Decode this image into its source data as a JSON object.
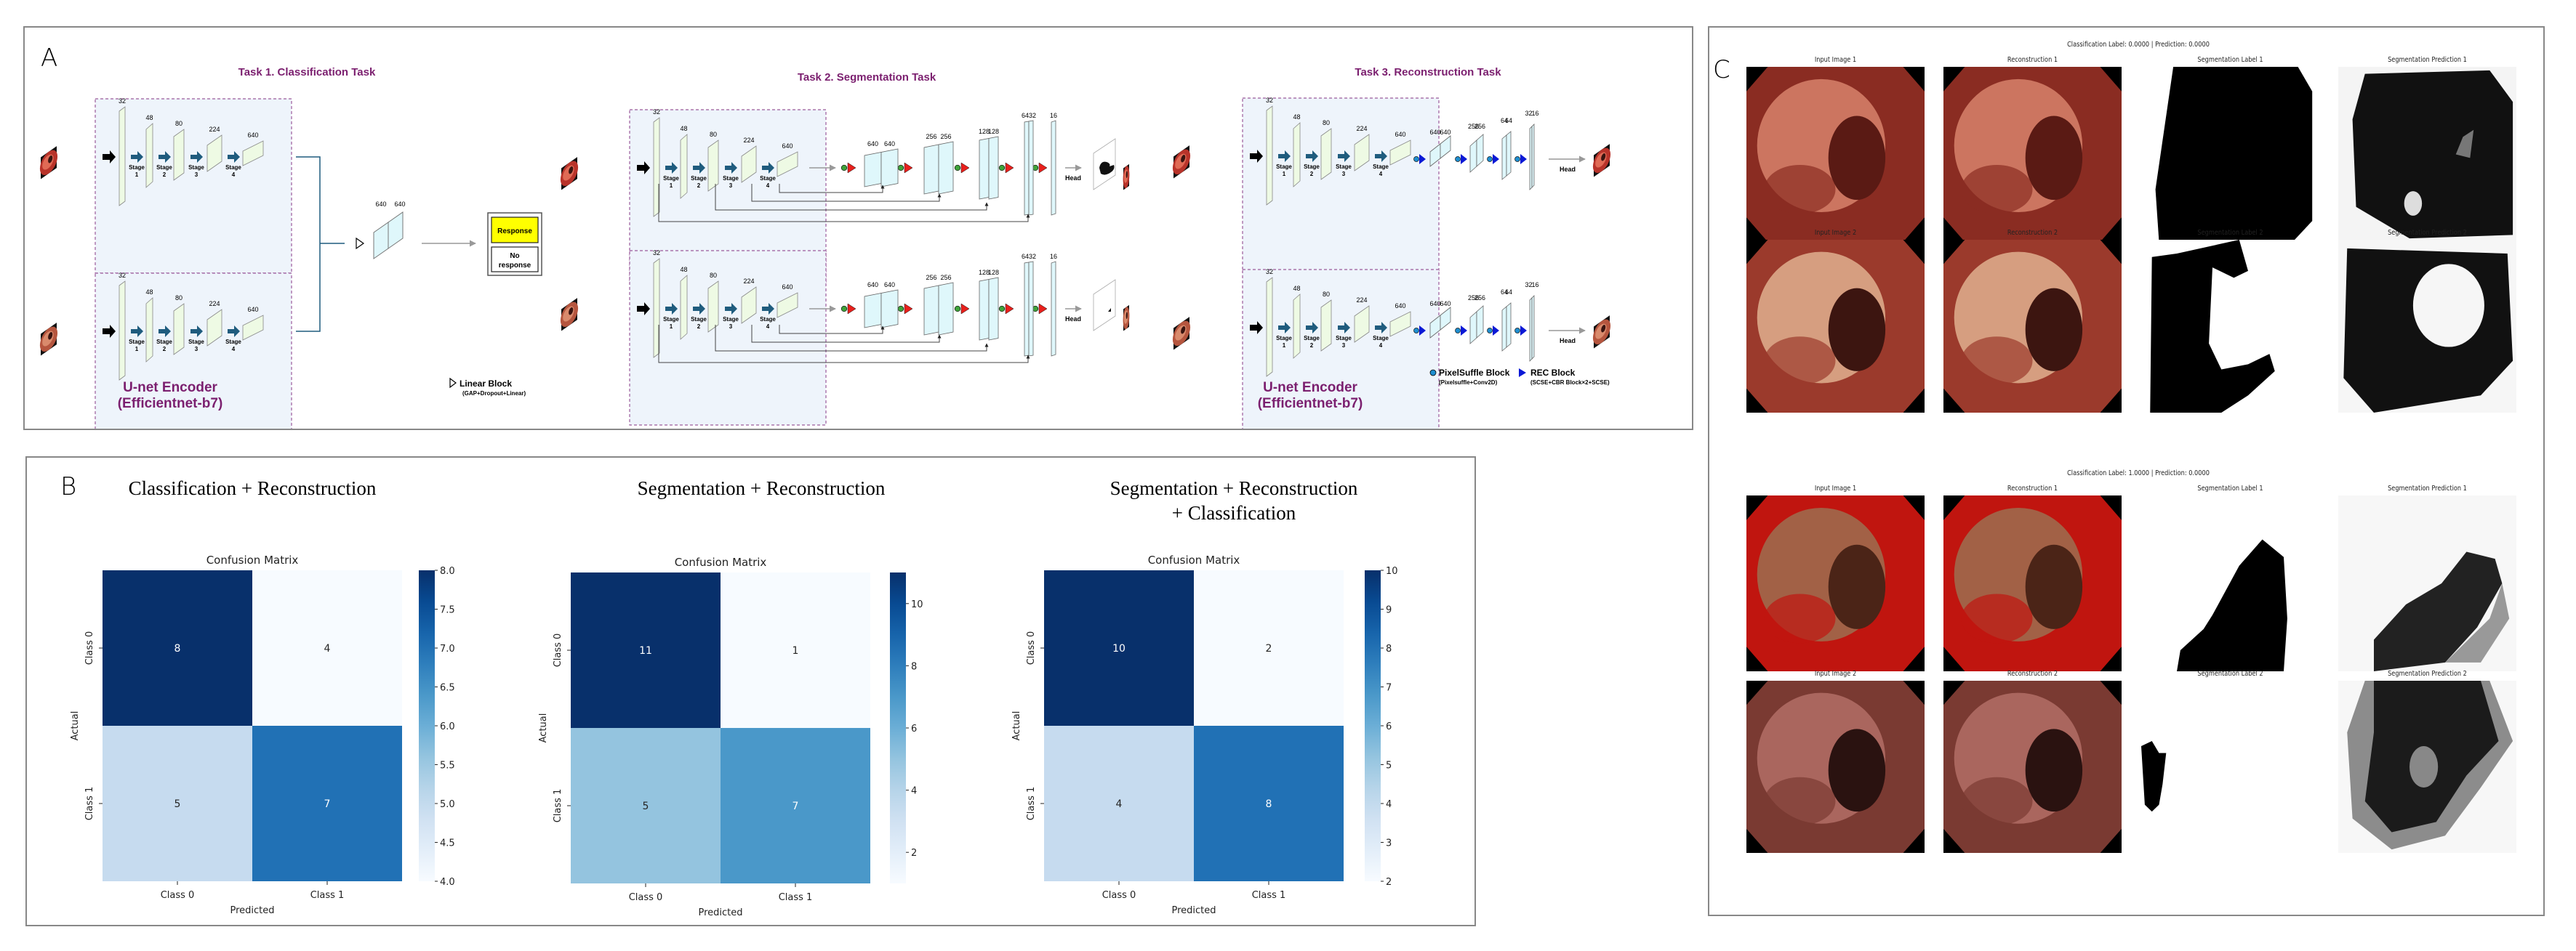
{
  "panel_a": {
    "letter": "A",
    "task1_title": "Task 1. Classification Task",
    "task2_title": "Task 2. Segmentation Task",
    "task3_title": "Task 3. Reconstruction Task",
    "encoder_label_line1": "U-net Encoder",
    "encoder_label_line2": "(Efficientnet-b7)",
    "encoder_channels": [
      "32",
      "48",
      "80",
      "224",
      "640"
    ],
    "stage_word": "Stage",
    "stage_numbers": [
      "1",
      "2",
      "3",
      "4"
    ],
    "classifier_channels": [
      "640",
      "640"
    ],
    "output_response": "Response",
    "output_no_response_line1": "No",
    "output_no_response_line2": "response",
    "seg_decoder_channels": [
      "640",
      "640",
      "256",
      "256",
      "128",
      "128",
      "64",
      "32",
      "16"
    ],
    "rec_decoder_channels": [
      "640",
      "640",
      "256",
      "256",
      "64",
      "64",
      "32",
      "16"
    ],
    "head_label": "Head",
    "legend": {
      "linear_block_title": "Linear Block",
      "linear_block_desc": "(GAP+Dropout+Linear)",
      "pixelshuffle_title": "PixelSuffle Block",
      "pixelshuffle_desc": "(Pixelsuffle+Conv2D)",
      "rec_title": "REC Block",
      "rec_desc": "(SCSE+CBR Block×2+SCSE)"
    },
    "colors": {
      "task_title": "#7b1f6f",
      "encoder_bg": "#eef4fb",
      "encoder_block": "#eefae4",
      "decoder_block": "#dff7fb",
      "stage_arrow": "#1f5c7e",
      "response_fill": "#ffff00",
      "seg_circle": "#3fa33a",
      "seg_triangle": "#e8201c",
      "rec_circle": "#1e8ed0",
      "rec_triangle": "#0b19d6"
    }
  },
  "panel_b": {
    "letter": "B",
    "chart_data": [
      {
        "type": "heatmap",
        "panel_title": "Classification + Reconstruction",
        "title": "Confusion Matrix",
        "xlabel": "Predicted",
        "ylabel": "Actual",
        "x_categories": [
          "Class 0",
          "Class 1"
        ],
        "y_categories": [
          "Class 0",
          "Class 1"
        ],
        "values": [
          [
            8,
            4
          ],
          [
            5,
            7
          ]
        ],
        "colormap": "Blues",
        "colorbar_range": [
          4,
          8
        ],
        "colorbar_ticks": [
          "4.0",
          "4.5",
          "5.0",
          "5.5",
          "6.0",
          "6.5",
          "7.0",
          "7.5",
          "8.0"
        ],
        "colorbar_tick_values": [
          4.0,
          4.5,
          5.0,
          5.5,
          6.0,
          6.5,
          7.0,
          7.5,
          8.0
        ]
      },
      {
        "type": "heatmap",
        "panel_title": "Segmentation + Reconstruction",
        "title": "Confusion Matrix",
        "xlabel": "Predicted",
        "ylabel": "Actual",
        "x_categories": [
          "Class 0",
          "Class 1"
        ],
        "y_categories": [
          "Class 0",
          "Class 1"
        ],
        "values": [
          [
            11,
            1
          ],
          [
            5,
            7
          ]
        ],
        "colormap": "Blues",
        "colorbar_range": [
          1,
          11
        ],
        "colorbar_ticks": [
          "2",
          "4",
          "6",
          "8",
          "10"
        ],
        "colorbar_tick_values": [
          2,
          4,
          6,
          8,
          10
        ]
      },
      {
        "type": "heatmap",
        "panel_title": "Segmentation + Reconstruction\n+ Classification",
        "panel_title_line1": "Segmentation + Reconstruction",
        "panel_title_line2": "+ Classification",
        "title": "Confusion Matrix",
        "xlabel": "Predicted",
        "ylabel": "Actual",
        "x_categories": [
          "Class 0",
          "Class 1"
        ],
        "y_categories": [
          "Class 0",
          "Class 1"
        ],
        "values": [
          [
            10,
            2
          ],
          [
            4,
            8
          ]
        ],
        "colormap": "Blues",
        "colorbar_range": [
          2,
          10
        ],
        "colorbar_ticks": [
          "2",
          "3",
          "4",
          "5",
          "6",
          "7",
          "8",
          "9",
          "10"
        ],
        "colorbar_tick_values": [
          2,
          3,
          4,
          5,
          6,
          7,
          8,
          9,
          10
        ]
      }
    ]
  },
  "panel_c": {
    "letter": "C",
    "examples": [
      {
        "header": "Classification Label: 0.0000 | Prediction: 0.0000",
        "captions": [
          [
            "Input Image 1",
            "Reconstruction 1",
            "Segmentation Label 1",
            "Segmentation Prediction 1"
          ],
          [
            "Input Image 2",
            "Reconstruction 2",
            "Segmentation Label 2",
            "Segmentation Prediction 2"
          ]
        ]
      },
      {
        "header": "Classification Label: 1.0000 | Prediction: 0.0000",
        "captions": [
          [
            "Input Image 1",
            "Reconstruction 1",
            "Segmentation Label 1",
            "Segmentation Prediction 1"
          ],
          [
            "Input Image 2",
            "Reconstruction 2",
            "Segmentation Label 2",
            "Segmentation Prediction 2"
          ]
        ]
      }
    ]
  }
}
